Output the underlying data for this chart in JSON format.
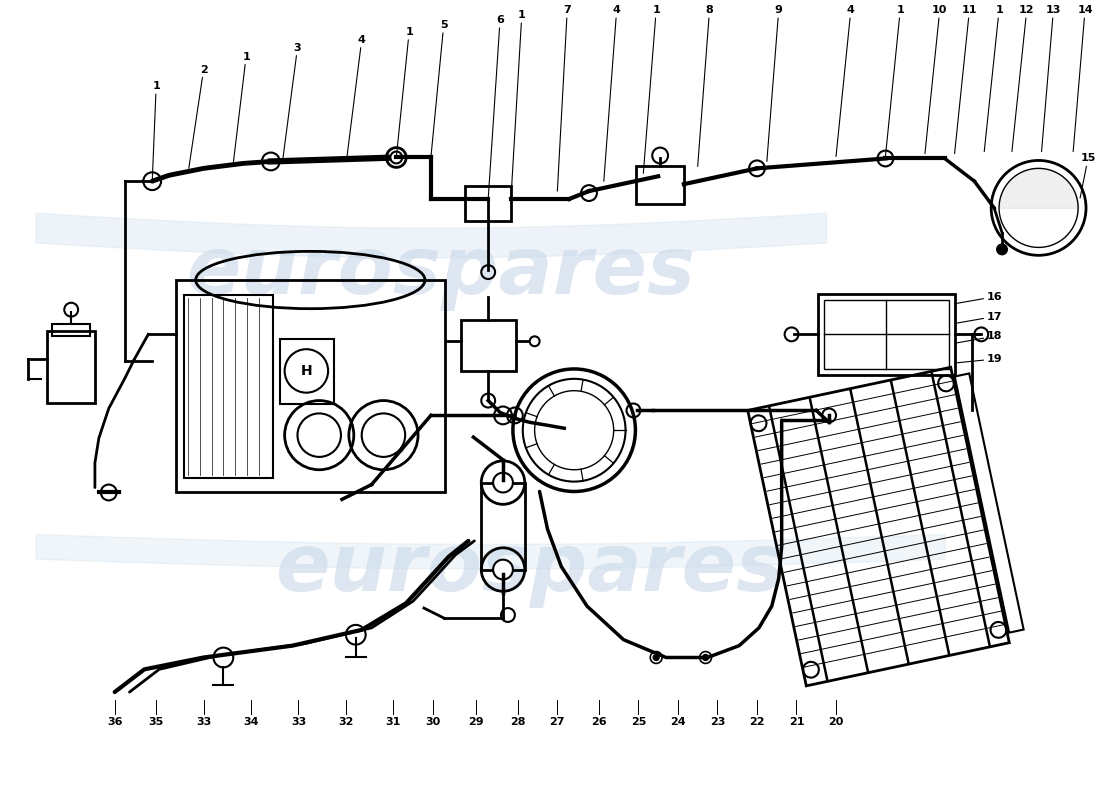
{
  "background_color": "#ffffff",
  "watermark_text": "eurospares",
  "watermark_color": "#c8d8e8",
  "top_numbers": [
    "1",
    "2",
    "1",
    "3",
    "4",
    "1",
    "5",
    "6",
    "1",
    "7",
    "4",
    "1",
    "8",
    "9",
    "4",
    "1",
    "10",
    "11",
    "1",
    "12",
    "13",
    "14"
  ],
  "bottom_numbers": [
    "36",
    "35",
    "33",
    "34",
    "33",
    "32",
    "31",
    "30",
    "29",
    "28",
    "27",
    "26",
    "25",
    "24",
    "23",
    "22",
    "21",
    "20"
  ],
  "side_number_right": "15",
  "side_numbers_right2": [
    "16",
    "17",
    "18",
    "19"
  ]
}
